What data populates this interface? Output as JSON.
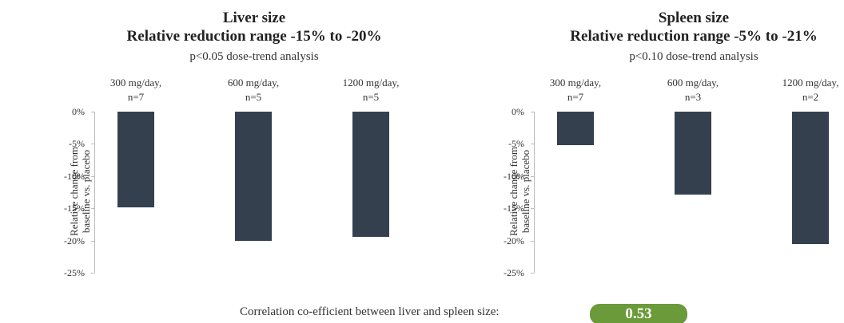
{
  "chart_data": [
    {
      "type": "bar",
      "title": "Liver size",
      "subtitle": "Relative reduction range -15% to -20%",
      "note": "p<0.05 dose-trend analysis",
      "ylabel": "Relative change from\nbaseline vs. placebo",
      "categories": [
        "300 mg/day,\nn=7",
        "600 mg/day,\nn=5",
        "1200 mg/day,\nn=5"
      ],
      "values": [
        -14.8,
        -20,
        -19.4
      ],
      "color": "#35404e",
      "ylim": [
        -25,
        0
      ],
      "yticks": [
        {
          "value": 0,
          "label": "0%"
        },
        {
          "value": -5,
          "label": "-5%"
        },
        {
          "value": -10,
          "label": "-10%"
        },
        {
          "value": -15,
          "label": "-15%"
        },
        {
          "value": -20,
          "label": "-20%"
        },
        {
          "value": -25,
          "label": "-25%"
        }
      ]
    },
    {
      "type": "bar",
      "title": "Spleen size",
      "subtitle": "Relative reduction range -5% to -21%",
      "note": "p<0.10 dose-trend analysis",
      "ylabel": "Relative change from\nbaseline vs. placebo",
      "categories": [
        "300 mg/day,\nn=7",
        "600 mg/day,\nn=3",
        "1200 mg/day,\nn=2"
      ],
      "values": [
        -5.2,
        -12.9,
        -20.6
      ],
      "color": "#35404e",
      "ylim": [
        -25,
        0
      ],
      "yticks": [
        {
          "value": 0,
          "label": "0%"
        },
        {
          "value": -5,
          "label": "-5%"
        },
        {
          "value": -10,
          "label": "-10%"
        },
        {
          "value": -15,
          "label": "-15%"
        },
        {
          "value": -20,
          "label": "-20%"
        },
        {
          "value": -25,
          "label": "-25%"
        }
      ]
    }
  ],
  "correlation": {
    "label": "Correlation co-efficient between liver and spleen size:",
    "value": 0.53
  }
}
